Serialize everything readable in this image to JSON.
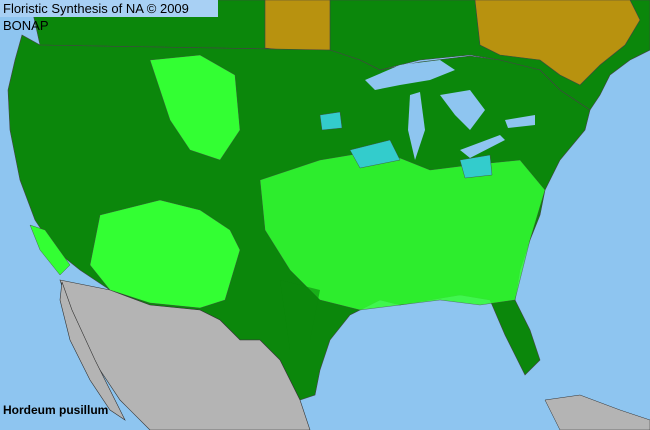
{
  "map": {
    "title": "Floristic Synthesis of NA © 2009 BONAP",
    "species": "Hordeum pusillum",
    "colors": {
      "ocean": "#8ec5f0",
      "present_county": "#0b870b",
      "native_common": "#33ff33",
      "adventive": "#33cccc",
      "state_present_province": "#b8920f",
      "outside_region": "#b4b4b4",
      "borders": "#555555"
    }
  }
}
